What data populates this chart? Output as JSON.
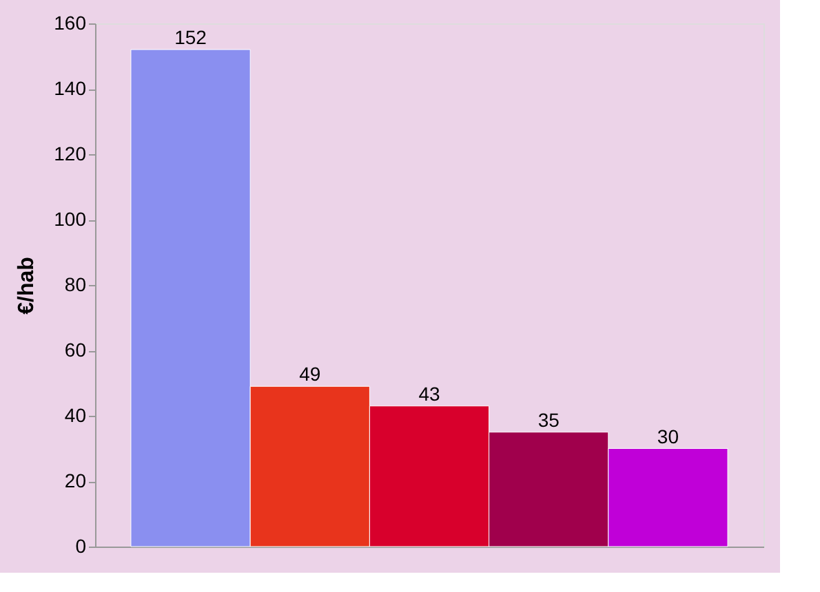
{
  "chart_data": {
    "type": "bar",
    "ylabel": "€/hab",
    "categories": [
      null,
      null,
      null,
      null,
      null
    ],
    "values": [
      152,
      49,
      43,
      35,
      30
    ],
    "colors": [
      "#8a8ff0",
      "#e8341c",
      "#d8002c",
      "#a0004c",
      "#c000d8"
    ],
    "ylim": [
      0,
      160
    ],
    "yticks": [
      0,
      20,
      40,
      60,
      80,
      100,
      120,
      140,
      160
    ],
    "grid": false,
    "data_labels": true,
    "tick_labels": "y"
  }
}
